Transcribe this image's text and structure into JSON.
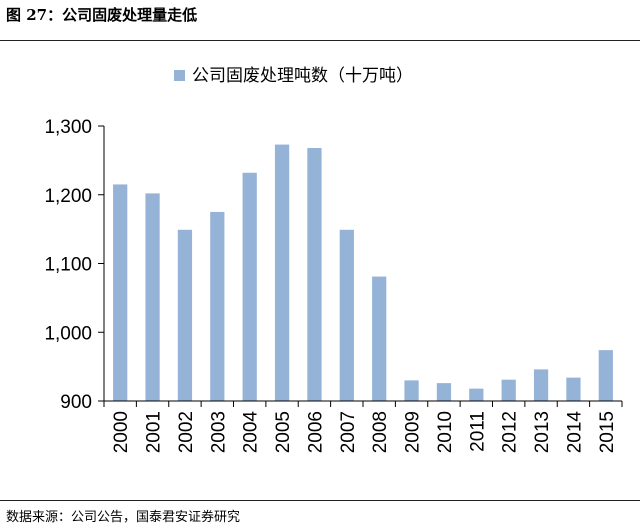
{
  "figure_title": "图 27：公司固废处理量走低",
  "source": "数据来源：公司公告，国泰君安证券研究",
  "chart_data": {
    "type": "bar",
    "categories": [
      "2000",
      "2001",
      "2002",
      "2003",
      "2004",
      "2005",
      "2006",
      "2007",
      "2008",
      "2009",
      "2010",
      "2011",
      "2012",
      "2013",
      "2014",
      "2015"
    ],
    "series": [
      {
        "name": "公司固废处理吨数（十万吨）",
        "values": [
          1215,
          1202,
          1149,
          1175,
          1232,
          1273,
          1268,
          1149,
          1081,
          930,
          926,
          918,
          931,
          946,
          934,
          974
        ]
      }
    ],
    "ylim": [
      900,
      1300
    ],
    "yticks": [
      900,
      1000,
      1100,
      1200,
      1300
    ],
    "ytick_labels": [
      "900",
      "1,000",
      "1,100",
      "1,200",
      "1,300"
    ],
    "legend_position": "top",
    "grid": false,
    "bar_color": "#95B3D7"
  }
}
